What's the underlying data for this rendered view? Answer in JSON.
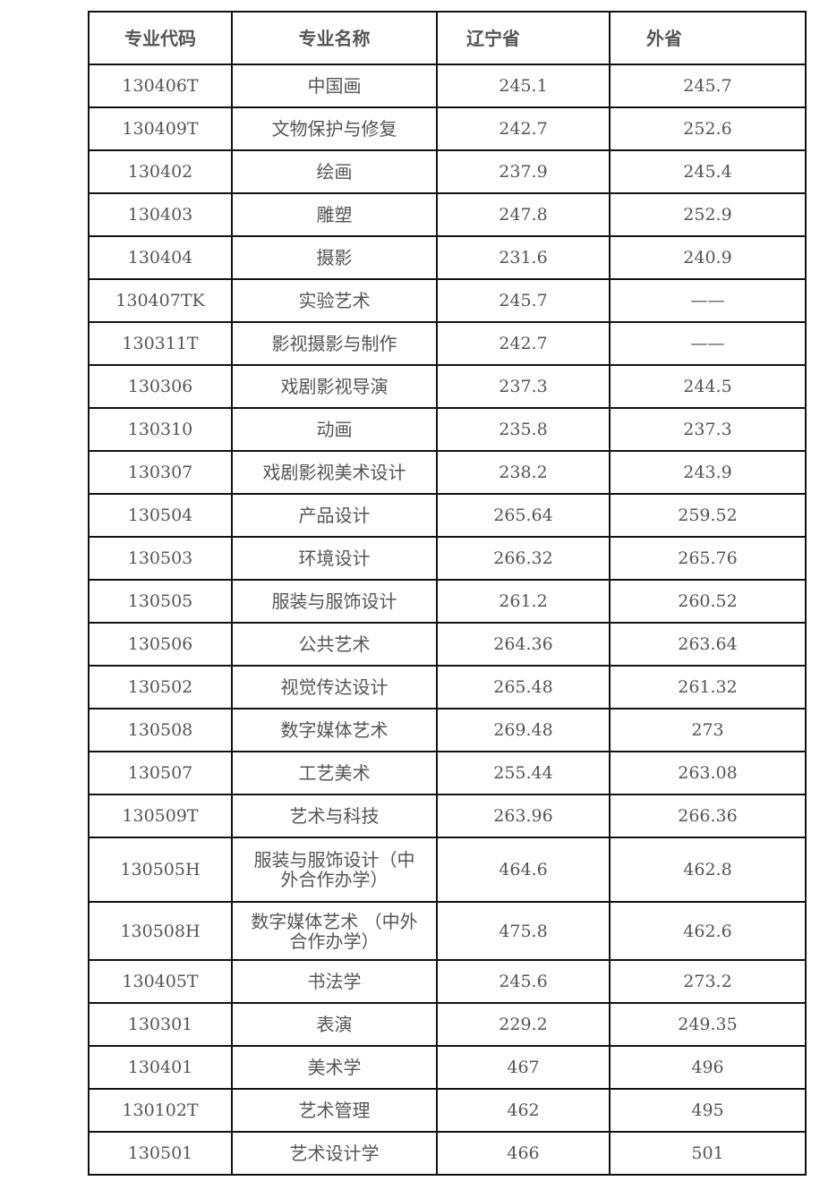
{
  "table": {
    "headers": [
      "专业代码",
      "专业名称",
      "辽宁省",
      "外省"
    ],
    "rows": [
      {
        "code": "130406T",
        "name": "中国画",
        "liaoning": "245.1",
        "other": "245.7"
      },
      {
        "code": "130409T",
        "name": "文物保护与修复",
        "liaoning": "242.7",
        "other": "252.6"
      },
      {
        "code": "130402",
        "name": "绘画",
        "liaoning": "237.9",
        "other": "245.4"
      },
      {
        "code": "130403",
        "name": "雕塑",
        "liaoning": "247.8",
        "other": "252.9"
      },
      {
        "code": "130404",
        "name": "摄影",
        "liaoning": "231.6",
        "other": "240.9"
      },
      {
        "code": "130407TK",
        "name": "实验艺术",
        "liaoning": "245.7",
        "other": "——"
      },
      {
        "code": "130311T",
        "name": "影视摄影与制作",
        "liaoning": "242.7",
        "other": "——"
      },
      {
        "code": "130306",
        "name": "戏剧影视导演",
        "liaoning": "237.3",
        "other": "244.5"
      },
      {
        "code": "130310",
        "name": "动画",
        "liaoning": "235.8",
        "other": "237.3"
      },
      {
        "code": "130307",
        "name": "戏剧影视美术设计",
        "liaoning": "238.2",
        "other": "243.9"
      },
      {
        "code": "130504",
        "name": "产品设计",
        "liaoning": "265.64",
        "other": "259.52"
      },
      {
        "code": "130503",
        "name": "环境设计",
        "liaoning": "266.32",
        "other": "265.76"
      },
      {
        "code": "130505",
        "name": "服装与服饰设计",
        "liaoning": "261.2",
        "other": "260.52"
      },
      {
        "code": "130506",
        "name": "公共艺术",
        "liaoning": "264.36",
        "other": "263.64"
      },
      {
        "code": "130502",
        "name": "视觉传达设计",
        "liaoning": "265.48",
        "other": "261.32"
      },
      {
        "code": "130508",
        "name": "数字媒体艺术",
        "liaoning": "269.48",
        "other": "273"
      },
      {
        "code": "130507",
        "name": "工艺美术",
        "liaoning": "255.44",
        "other": "263.08"
      },
      {
        "code": "130509T",
        "name": "艺术与科技",
        "liaoning": "263.96",
        "other": "266.36"
      },
      {
        "code": "130505H",
        "name": "服装与服饰设计（中外合作办学）",
        "liaoning": "464.6",
        "other": "462.8"
      },
      {
        "code": "130508H",
        "name": "数字媒体艺术 （中外合作办学）",
        "liaoning": "475.8",
        "other": "462.6"
      },
      {
        "code": "130405T",
        "name": "书法学",
        "liaoning": "245.6",
        "other": "273.2"
      },
      {
        "code": "130301",
        "name": "表演",
        "liaoning": "229.2",
        "other": "249.35"
      },
      {
        "code": "130401",
        "name": "美术学",
        "liaoning": "467",
        "other": "496"
      },
      {
        "code": "130102T",
        "name": "艺术管理",
        "liaoning": "462",
        "other": "495"
      },
      {
        "code": "130501",
        "name": "艺术设计学",
        "liaoning": "466",
        "other": "501"
      }
    ]
  }
}
